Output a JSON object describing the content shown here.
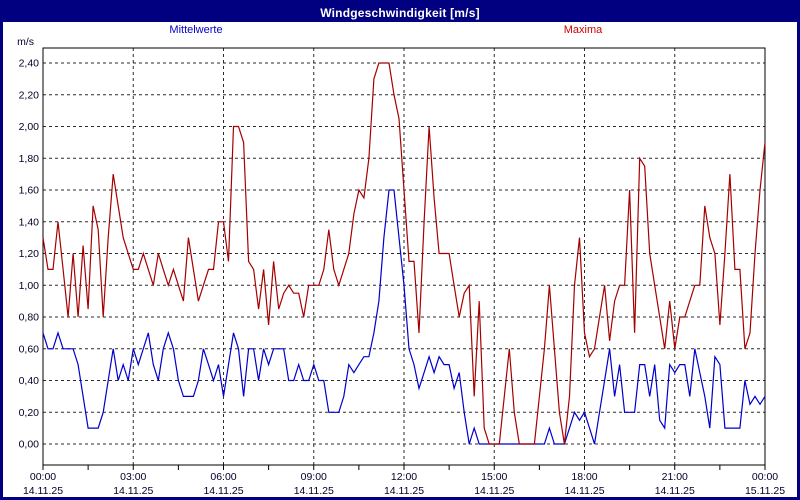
{
  "window": {
    "title": "Windgeschwindigkeit [m/s]"
  },
  "legend": {
    "mean_label": "Mittelwerte",
    "max_label": "Maxima",
    "mean_color": "#0000cc",
    "max_color": "#a50000"
  },
  "chart_data": {
    "type": "line",
    "title": "Windgeschwindigkeit [m/s]",
    "unit_label": "m/s",
    "grid": "dashed",
    "legend_position": "top",
    "ylim": [
      0.0,
      2.4
    ],
    "y_tick_step": 0.2,
    "y_tick_labels": [
      "0,00",
      "0,20",
      "0,40",
      "0,60",
      "0,80",
      "1,00",
      "1,20",
      "1,40",
      "1,60",
      "1,80",
      "2,00",
      "2,20",
      "2,40"
    ],
    "x_start_hour": 0,
    "x_end_hour": 24,
    "x_minor_tick_hours": 1.5,
    "x_major_ticks": [
      {
        "time": "00:00",
        "date": "14.11.25"
      },
      {
        "time": "03:00",
        "date": "14.11.25"
      },
      {
        "time": "06:00",
        "date": "14.11.25"
      },
      {
        "time": "09:00",
        "date": "14.11.25"
      },
      {
        "time": "12:00",
        "date": "14.11.25"
      },
      {
        "time": "15:00",
        "date": "14.11.25"
      },
      {
        "time": "18:00",
        "date": "14.11.25"
      },
      {
        "time": "21:00",
        "date": "14.11.25"
      },
      {
        "time": "00:00",
        "date": "15.11.25"
      }
    ],
    "sample_interval_minutes": 10,
    "series": [
      {
        "name": "Mittelwerte",
        "color": "#0000cc",
        "values": [
          0.7,
          0.6,
          0.6,
          0.7,
          0.6,
          0.6,
          0.6,
          0.5,
          0.3,
          0.1,
          0.1,
          0.1,
          0.2,
          0.4,
          0.6,
          0.4,
          0.5,
          0.4,
          0.6,
          0.5,
          0.6,
          0.7,
          0.5,
          0.4,
          0.6,
          0.7,
          0.6,
          0.4,
          0.3,
          0.3,
          0.3,
          0.4,
          0.6,
          0.5,
          0.4,
          0.5,
          0.3,
          0.5,
          0.7,
          0.6,
          0.3,
          0.6,
          0.6,
          0.4,
          0.6,
          0.5,
          0.6,
          0.6,
          0.6,
          0.4,
          0.4,
          0.5,
          0.4,
          0.4,
          0.5,
          0.4,
          0.4,
          0.2,
          0.2,
          0.2,
          0.3,
          0.5,
          0.45,
          0.5,
          0.55,
          0.55,
          0.7,
          0.9,
          1.3,
          1.6,
          1.6,
          1.3,
          1.0,
          0.6,
          0.5,
          0.35,
          0.45,
          0.55,
          0.45,
          0.55,
          0.5,
          0.5,
          0.35,
          0.45,
          0.2,
          0.0,
          0.1,
          0.0,
          0.0,
          0.0,
          0.0,
          0.0,
          0.0,
          0.0,
          0.0,
          0.0,
          0.0,
          0.0,
          0.0,
          0.0,
          0.0,
          0.1,
          0.0,
          0.0,
          0.0,
          0.1,
          0.2,
          0.15,
          0.2,
          0.1,
          0.0,
          0.2,
          0.4,
          0.6,
          0.3,
          0.5,
          0.2,
          0.2,
          0.2,
          0.5,
          0.5,
          0.3,
          0.5,
          0.15,
          0.1,
          0.5,
          0.45,
          0.5,
          0.5,
          0.3,
          0.6,
          0.45,
          0.3,
          0.1,
          0.55,
          0.5,
          0.1,
          0.1,
          0.1,
          0.1,
          0.4,
          0.25,
          0.3,
          0.25,
          0.3
        ]
      },
      {
        "name": "Maxima",
        "color": "#a50000",
        "values": [
          1.3,
          1.1,
          1.1,
          1.4,
          1.1,
          0.8,
          1.2,
          0.8,
          1.25,
          0.85,
          1.5,
          1.35,
          0.8,
          1.3,
          1.7,
          1.5,
          1.3,
          1.2,
          1.1,
          1.1,
          1.2,
          1.1,
          1.0,
          1.2,
          1.1,
          1.0,
          1.1,
          1.0,
          0.9,
          1.3,
          1.1,
          0.9,
          1.0,
          1.1,
          1.1,
          1.4,
          1.4,
          1.15,
          2.0,
          2.0,
          1.9,
          1.15,
          1.1,
          0.85,
          1.1,
          0.75,
          1.15,
          0.85,
          0.95,
          1.0,
          0.95,
          0.95,
          0.8,
          1.0,
          1.0,
          1.0,
          1.1,
          1.35,
          1.1,
          1.0,
          1.1,
          1.2,
          1.45,
          1.6,
          1.55,
          1.8,
          2.3,
          2.4,
          2.4,
          2.4,
          2.2,
          2.05,
          1.6,
          1.15,
          1.15,
          0.7,
          1.4,
          2.0,
          1.55,
          1.2,
          1.2,
          1.2,
          1.0,
          0.8,
          0.95,
          1.0,
          0.3,
          0.9,
          0.1,
          0.0,
          0.0,
          0.0,
          0.3,
          0.6,
          0.2,
          0.0,
          0.0,
          0.0,
          0.0,
          0.3,
          0.6,
          1.0,
          0.6,
          0.2,
          0.0,
          0.3,
          1.0,
          1.3,
          0.7,
          0.55,
          0.6,
          0.8,
          1.0,
          0.65,
          0.9,
          1.0,
          1.0,
          1.6,
          0.7,
          1.8,
          1.75,
          1.2,
          1.0,
          0.8,
          0.6,
          0.9,
          0.6,
          0.8,
          0.8,
          0.9,
          1.0,
          1.0,
          1.5,
          1.3,
          1.2,
          0.75,
          1.2,
          1.7,
          1.1,
          1.1,
          0.6,
          0.7,
          1.2,
          1.6,
          1.9
        ]
      }
    ]
  }
}
